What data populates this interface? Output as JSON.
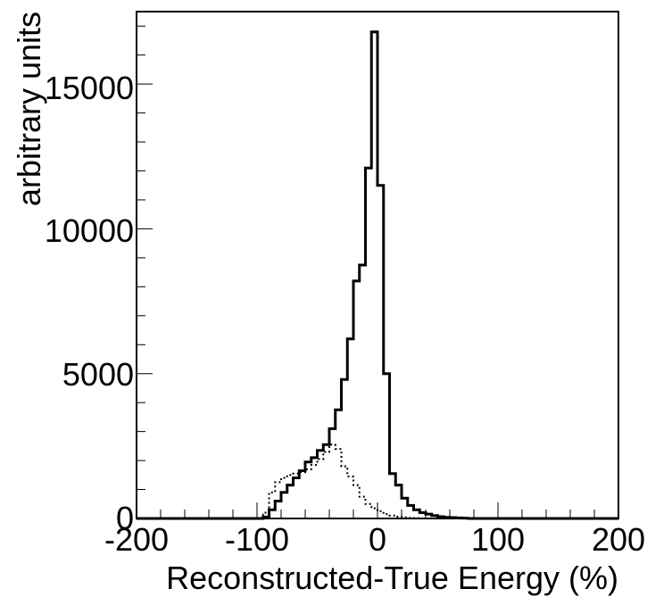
{
  "chart_data": {
    "type": "histogram",
    "title": "",
    "xlabel": "Reconstructed-True Energy (%)",
    "ylabel": "arbitrary units",
    "xlim": [
      -200,
      200
    ],
    "ylim": [
      0,
      17500
    ],
    "bin_width": 5,
    "x_ticks": [
      -200,
      -100,
      0,
      100,
      200
    ],
    "x_tick_labels": [
      "-200",
      "-100",
      "0",
      "100",
      "200"
    ],
    "y_ticks": [
      0,
      5000,
      10000,
      15000
    ],
    "y_tick_labels": [
      "0",
      "5000",
      "10000",
      "15000"
    ],
    "grid": false,
    "legend": "none",
    "series": [
      {
        "style": "solid",
        "color": "#000000",
        "bin_edges": [
          -200,
          -195,
          -190,
          -185,
          -180,
          -175,
          -170,
          -165,
          -160,
          -155,
          -150,
          -145,
          -140,
          -135,
          -130,
          -125,
          -120,
          -115,
          -110,
          -105,
          -100,
          -95,
          -90,
          -85,
          -80,
          -75,
          -70,
          -65,
          -60,
          -55,
          -50,
          -45,
          -40,
          -35,
          -30,
          -25,
          -20,
          -15,
          -10,
          -5,
          0,
          5,
          10,
          15,
          20,
          25,
          30,
          35,
          40,
          45,
          50,
          55,
          60,
          65,
          70,
          75,
          80,
          85,
          90,
          95,
          100,
          105,
          110,
          115,
          120,
          125,
          130,
          135,
          140,
          145,
          150,
          155,
          160,
          165,
          170,
          175,
          180,
          185,
          190,
          195,
          200
        ],
        "values": [
          0,
          0,
          0,
          0,
          0,
          0,
          0,
          0,
          0,
          0,
          0,
          0,
          0,
          0,
          0,
          0,
          0,
          0,
          0,
          0,
          0,
          50,
          300,
          600,
          900,
          1150,
          1400,
          1650,
          1950,
          2100,
          2350,
          2550,
          3100,
          3750,
          4800,
          6200,
          8200,
          8750,
          12100,
          16800,
          11500,
          5000,
          1550,
          1150,
          700,
          450,
          300,
          200,
          150,
          100,
          60,
          40,
          30,
          20,
          10,
          0,
          0,
          0,
          0,
          0,
          0,
          0,
          0,
          0,
          0,
          0,
          0,
          0,
          0,
          0,
          0,
          0,
          0,
          0,
          0,
          0,
          0,
          0,
          0,
          0
        ]
      },
      {
        "style": "dotted",
        "color": "#000000",
        "bin_edges": [
          -200,
          -195,
          -190,
          -185,
          -180,
          -175,
          -170,
          -165,
          -160,
          -155,
          -150,
          -145,
          -140,
          -135,
          -130,
          -125,
          -120,
          -115,
          -110,
          -105,
          -100,
          -95,
          -90,
          -85,
          -80,
          -75,
          -70,
          -65,
          -60,
          -55,
          -50,
          -45,
          -40,
          -35,
          -30,
          -25,
          -20,
          -15,
          -10,
          -5,
          0,
          5,
          10,
          15,
          20,
          25,
          30,
          35,
          40,
          45,
          50,
          55,
          60,
          65,
          70,
          75,
          80,
          85,
          90,
          95,
          100,
          105,
          110,
          115,
          120,
          125,
          130,
          135,
          140,
          145,
          150,
          155,
          160,
          165,
          170,
          175,
          180,
          185,
          190,
          195,
          200
        ],
        "values": [
          0,
          0,
          0,
          0,
          0,
          0,
          0,
          0,
          0,
          0,
          0,
          0,
          0,
          0,
          0,
          0,
          0,
          0,
          0,
          0,
          0,
          200,
          900,
          1250,
          1400,
          1500,
          1550,
          1600,
          1700,
          1850,
          2050,
          2300,
          2550,
          2400,
          1800,
          1450,
          1150,
          750,
          500,
          350,
          250,
          150,
          100,
          60,
          40,
          20,
          10,
          0,
          0,
          0,
          0,
          0,
          0,
          0,
          0,
          0,
          0,
          0,
          0,
          0,
          0,
          0,
          0,
          0,
          0,
          0,
          0,
          0,
          0,
          0,
          0,
          0,
          0,
          0,
          0,
          0,
          0,
          0,
          0,
          0
        ]
      }
    ]
  }
}
